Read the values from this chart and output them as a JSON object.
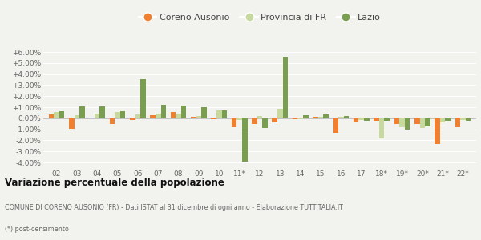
{
  "years": [
    "02",
    "03",
    "04",
    "05",
    "06",
    "07",
    "08",
    "09",
    "10",
    "11*",
    "12",
    "13",
    "14",
    "15",
    "16",
    "17",
    "18*",
    "19*",
    "20*",
    "21*",
    "22*"
  ],
  "coreno": [
    0.35,
    -0.95,
    0.0,
    -0.5,
    -0.15,
    0.25,
    0.6,
    0.1,
    -0.1,
    -0.8,
    -0.5,
    -0.35,
    -0.1,
    0.1,
    -1.3,
    -0.3,
    -0.2,
    -0.5,
    -0.55,
    -2.3,
    -0.8
  ],
  "provincia": [
    0.55,
    0.3,
    0.45,
    0.55,
    0.35,
    0.45,
    0.45,
    0.2,
    0.7,
    -0.15,
    0.2,
    0.85,
    -0.1,
    0.1,
    0.15,
    -0.15,
    -1.85,
    -0.8,
    -0.85,
    -0.35,
    -0.15
  ],
  "lazio": [
    0.65,
    1.1,
    1.1,
    0.65,
    3.55,
    1.2,
    1.15,
    1.0,
    0.75,
    -3.95,
    -0.85,
    5.55,
    0.3,
    0.35,
    0.2,
    -0.2,
    -0.25,
    -1.0,
    -0.7,
    -0.25,
    -0.2
  ],
  "coreno_color": "#f08030",
  "provincia_color": "#c8d9a0",
  "lazio_color": "#7a9e50",
  "background_color": "#f2f2ee",
  "grid_color": "#ffffff",
  "ylim": [
    -4.5,
    6.8
  ],
  "yticks": [
    -4.0,
    -3.0,
    -2.0,
    -1.0,
    0.0,
    1.0,
    2.0,
    3.0,
    4.0,
    5.0,
    6.0
  ],
  "title": "Variazione percentuale della popolazione",
  "subtitle": "COMUNE DI CORENO AUSONIO (FR) - Dati ISTAT al 31 dicembre di ogni anno - Elaborazione TUTTITALIA.IT",
  "footnote": "(*) post-censimento",
  "legend_labels": [
    "Coreno Ausonio",
    "Provincia di FR",
    "Lazio"
  ]
}
